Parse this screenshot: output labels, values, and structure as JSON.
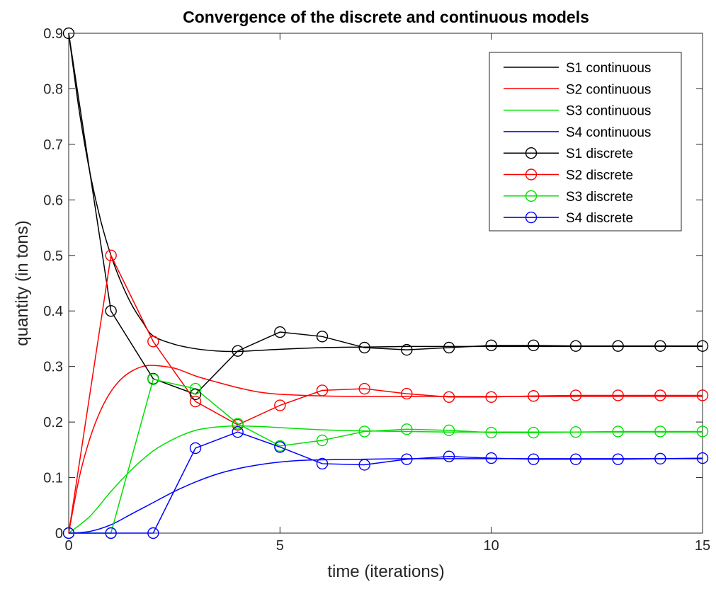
{
  "chart_data": {
    "type": "line",
    "title": "Convergence of the discrete and continuous models",
    "xlabel": "time (iterations)",
    "ylabel": "quantity (in tons)",
    "xlim": [
      0,
      15
    ],
    "ylim": [
      0,
      0.9
    ],
    "xticks": [
      0,
      5,
      10,
      15
    ],
    "xtick_labels": [
      "0",
      "5",
      "10",
      "15"
    ],
    "yticks": [
      0,
      0.1,
      0.2,
      0.3,
      0.4,
      0.5,
      0.6,
      0.7,
      0.8,
      0.9
    ],
    "ytick_labels": [
      "0",
      "0.1",
      "0.2",
      "0.3",
      "0.4",
      "0.5",
      "0.6",
      "0.7",
      "0.8",
      "0.9"
    ],
    "grid": false,
    "legend_position": "top-right",
    "continuous_series": [
      {
        "name": "S1 continuous",
        "color": "#000000",
        "x": [
          0,
          0.25,
          0.5,
          0.75,
          1,
          1.25,
          1.5,
          1.75,
          2,
          2.5,
          3,
          3.5,
          4,
          4.5,
          5,
          6,
          7,
          8,
          9,
          10,
          11,
          12,
          13,
          14,
          15
        ],
        "y": [
          0.9,
          0.76,
          0.65,
          0.565,
          0.5,
          0.45,
          0.41,
          0.38,
          0.355,
          0.34,
          0.332,
          0.328,
          0.327,
          0.329,
          0.331,
          0.334,
          0.335,
          0.336,
          0.336,
          0.336,
          0.336,
          0.336,
          0.336,
          0.336,
          0.336
        ]
      },
      {
        "name": "S2 continuous",
        "color": "#ff0000",
        "x": [
          0,
          0.25,
          0.5,
          0.75,
          1,
          1.25,
          1.5,
          1.75,
          2,
          2.5,
          3,
          3.5,
          4,
          4.5,
          5,
          6,
          7,
          8,
          9,
          10,
          11,
          12,
          13,
          14,
          15
        ],
        "y": [
          0,
          0.1,
          0.17,
          0.22,
          0.255,
          0.278,
          0.292,
          0.3,
          0.302,
          0.297,
          0.283,
          0.272,
          0.262,
          0.254,
          0.25,
          0.247,
          0.246,
          0.246,
          0.246,
          0.246,
          0.246,
          0.246,
          0.246,
          0.246,
          0.246
        ]
      },
      {
        "name": "S3 continuous",
        "color": "#00e000",
        "x": [
          0,
          0.5,
          1,
          1.5,
          2,
          2.5,
          3,
          3.5,
          4,
          4.5,
          5,
          6,
          7,
          8,
          9,
          10,
          11,
          12,
          13,
          14,
          15
        ],
        "y": [
          0,
          0.03,
          0.075,
          0.115,
          0.148,
          0.17,
          0.185,
          0.191,
          0.193,
          0.192,
          0.19,
          0.186,
          0.184,
          0.183,
          0.182,
          0.182,
          0.182,
          0.182,
          0.182,
          0.182,
          0.182
        ]
      },
      {
        "name": "S4 continuous",
        "color": "#0000ff",
        "x": [
          0,
          0.5,
          1,
          1.5,
          2,
          2.5,
          3,
          3.5,
          4,
          4.5,
          5,
          5.5,
          6,
          7,
          8,
          9,
          10,
          11,
          12,
          13,
          14,
          15
        ],
        "y": [
          0,
          0.003,
          0.015,
          0.035,
          0.055,
          0.075,
          0.092,
          0.106,
          0.116,
          0.123,
          0.128,
          0.131,
          0.132,
          0.133,
          0.134,
          0.134,
          0.134,
          0.134,
          0.134,
          0.134,
          0.134,
          0.134
        ]
      }
    ],
    "discrete_series": [
      {
        "name": "S1 discrete",
        "color": "#000000",
        "x": [
          0,
          1,
          2,
          3,
          4,
          5,
          6,
          7,
          8,
          9,
          10,
          11,
          12,
          13,
          14,
          15
        ],
        "y": [
          0.9,
          0.4,
          0.278,
          0.25,
          0.328,
          0.362,
          0.354,
          0.334,
          0.33,
          0.334,
          0.338,
          0.338,
          0.337,
          0.337,
          0.337,
          0.337
        ]
      },
      {
        "name": "S2 discrete",
        "color": "#ff0000",
        "x": [
          0,
          1,
          2,
          3,
          4,
          5,
          6,
          7,
          8,
          9,
          10,
          11,
          12,
          13,
          14,
          15
        ],
        "y": [
          0,
          0.5,
          0.345,
          0.237,
          0.195,
          0.23,
          0.257,
          0.26,
          0.251,
          0.245,
          0.245,
          0.247,
          0.248,
          0.248,
          0.248,
          0.248
        ]
      },
      {
        "name": "S3 discrete",
        "color": "#00e000",
        "x": [
          0,
          1,
          2,
          3,
          4,
          5,
          6,
          7,
          8,
          9,
          10,
          11,
          12,
          13,
          14,
          15
        ],
        "y": [
          0,
          0,
          0.277,
          0.26,
          0.197,
          0.157,
          0.167,
          0.183,
          0.187,
          0.185,
          0.181,
          0.181,
          0.182,
          0.183,
          0.183,
          0.183
        ]
      },
      {
        "name": "S4 discrete",
        "color": "#0000ff",
        "x": [
          0,
          1,
          2,
          3,
          4,
          5,
          6,
          7,
          8,
          9,
          10,
          11,
          12,
          13,
          14,
          15
        ],
        "y": [
          0,
          0,
          0,
          0.153,
          0.182,
          0.155,
          0.125,
          0.123,
          0.133,
          0.138,
          0.135,
          0.133,
          0.133,
          0.133,
          0.134,
          0.135
        ]
      }
    ]
  }
}
